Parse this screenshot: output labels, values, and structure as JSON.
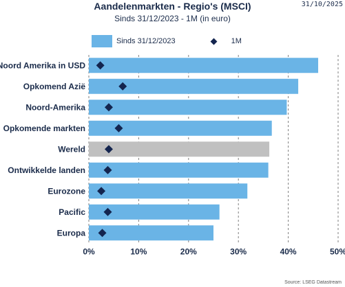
{
  "header": {
    "title": "Aandelenmarkten - Regio's (MSCI)",
    "subtitle": "Sinds 31/12/2023 - 1M (in euro)",
    "date": "31/10/2025"
  },
  "legend": {
    "bar_label": "Sinds 31/12/2023",
    "diamond_label": "1M"
  },
  "source": "Source: LSEG Datastream",
  "colors": {
    "bar": "#6ab4e6",
    "highlight_bar": "#c0c0c0",
    "diamond": "#14254f"
  },
  "chart_data": {
    "type": "bar",
    "orientation": "horizontal",
    "categories": [
      "Noord Amerika in USD",
      "Opkomend Azië",
      "Noord-Amerika",
      "Opkomende markten",
      "Wereld",
      "Ontwikkelde landen",
      "Eurozone",
      "Pacific",
      "Europa"
    ],
    "series": [
      {
        "name": "Sinds 31/12/2023",
        "values": [
          46.0,
          42.0,
          39.7,
          36.7,
          36.2,
          36.0,
          31.8,
          26.2,
          25.0
        ]
      },
      {
        "name": "1M",
        "values": [
          2.3,
          6.8,
          4.0,
          6.0,
          4.0,
          3.8,
          2.5,
          3.8,
          2.7
        ]
      }
    ],
    "highlight_category": "Wereld",
    "xlim": [
      0,
      50
    ],
    "xticks": [
      "0%",
      "10%",
      "20%",
      "30%",
      "40%",
      "50%"
    ],
    "xtick_values": [
      0,
      10,
      20,
      30,
      40,
      50
    ],
    "grid": true
  }
}
